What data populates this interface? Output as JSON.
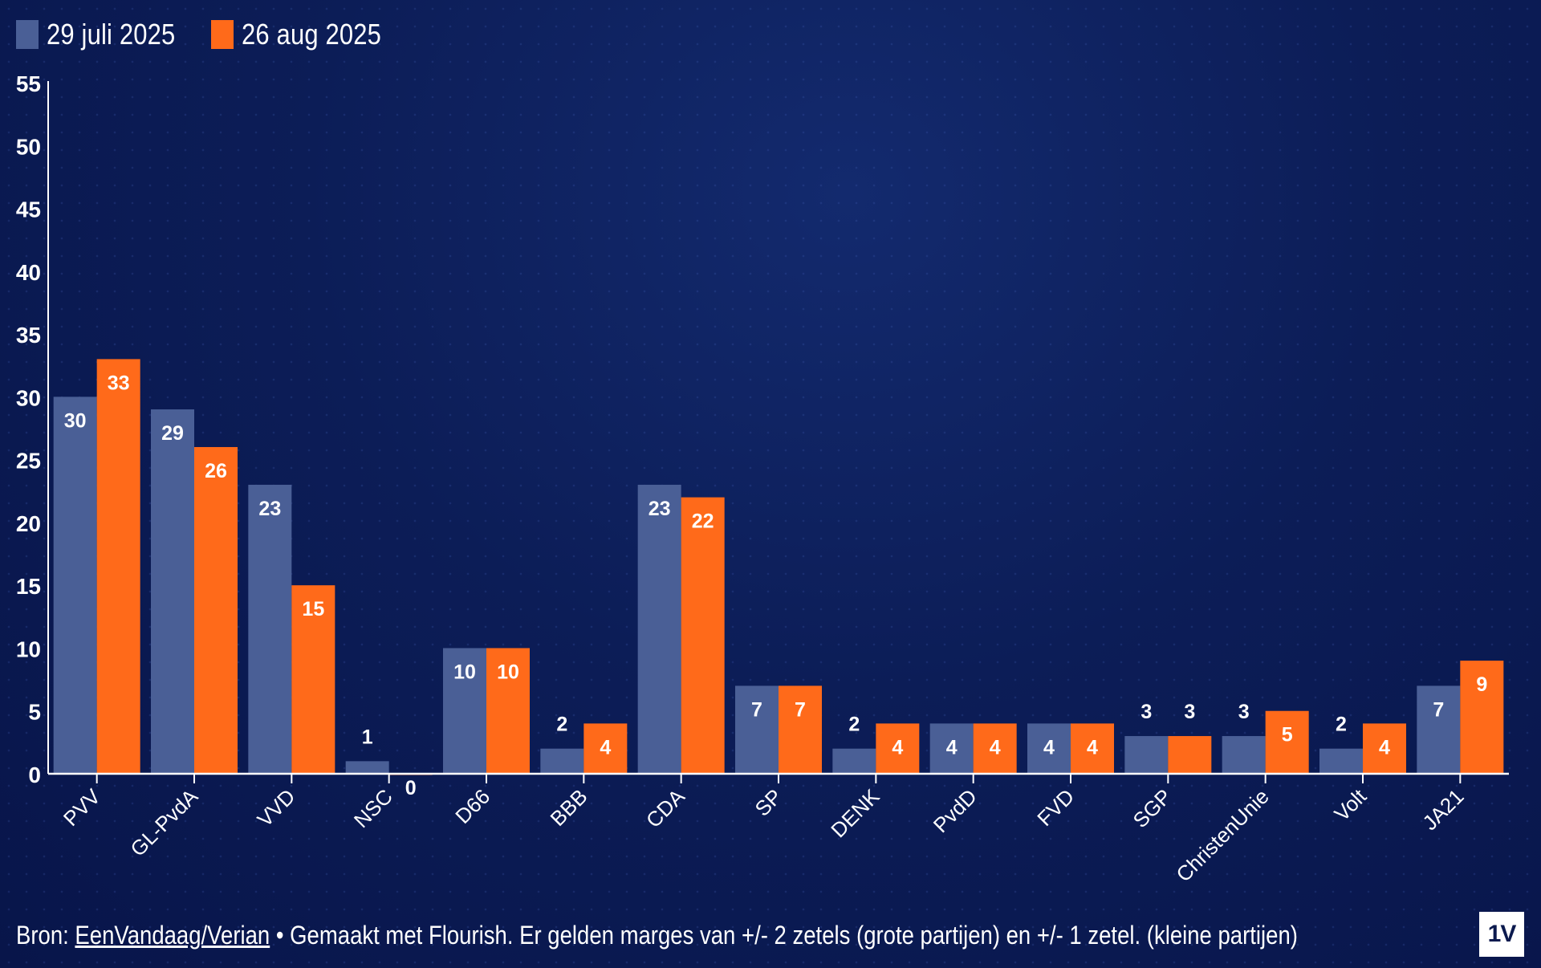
{
  "legend": {
    "series_a": "29 juli 2025",
    "series_b": "26 aug 2025"
  },
  "colors": {
    "series_a": "#4a5f96",
    "series_b": "#ff6a1a",
    "background": "#0b1a4e",
    "axis": "#ffffff"
  },
  "source": {
    "prefix": "Bron: ",
    "link": "EenVandaag/Verian",
    "suffix": " • Gemaakt met Flourish. Er gelden marges van +/- 2 zetels (grote partijen) en +/- 1 zetel. (kleine partijen)"
  },
  "logo": {
    "text": "1V"
  },
  "chart_data": {
    "type": "bar",
    "categories": [
      "PVV",
      "GL-PvdA",
      "VVD",
      "NSC",
      "D66",
      "BBB",
      "CDA",
      "SP",
      "DENK",
      "PvdD",
      "FVD",
      "SGP",
      "ChristenUnie",
      "Volt",
      "JA21"
    ],
    "series": [
      {
        "name": "29 juli 2025",
        "values": [
          30,
          29,
          23,
          1,
          10,
          2,
          23,
          7,
          2,
          4,
          4,
          3,
          3,
          2,
          7
        ]
      },
      {
        "name": "26 aug 2025",
        "values": [
          33,
          26,
          15,
          0,
          10,
          4,
          22,
          7,
          4,
          4,
          4,
          3,
          5,
          4,
          9
        ]
      }
    ],
    "yticks": [
      0,
      5,
      10,
      15,
      20,
      25,
      30,
      35,
      40,
      45,
      50,
      55
    ],
    "ylim": [
      0,
      55
    ],
    "grid": false,
    "legend_position": "top-left",
    "title": "",
    "xlabel": "",
    "ylabel": ""
  }
}
